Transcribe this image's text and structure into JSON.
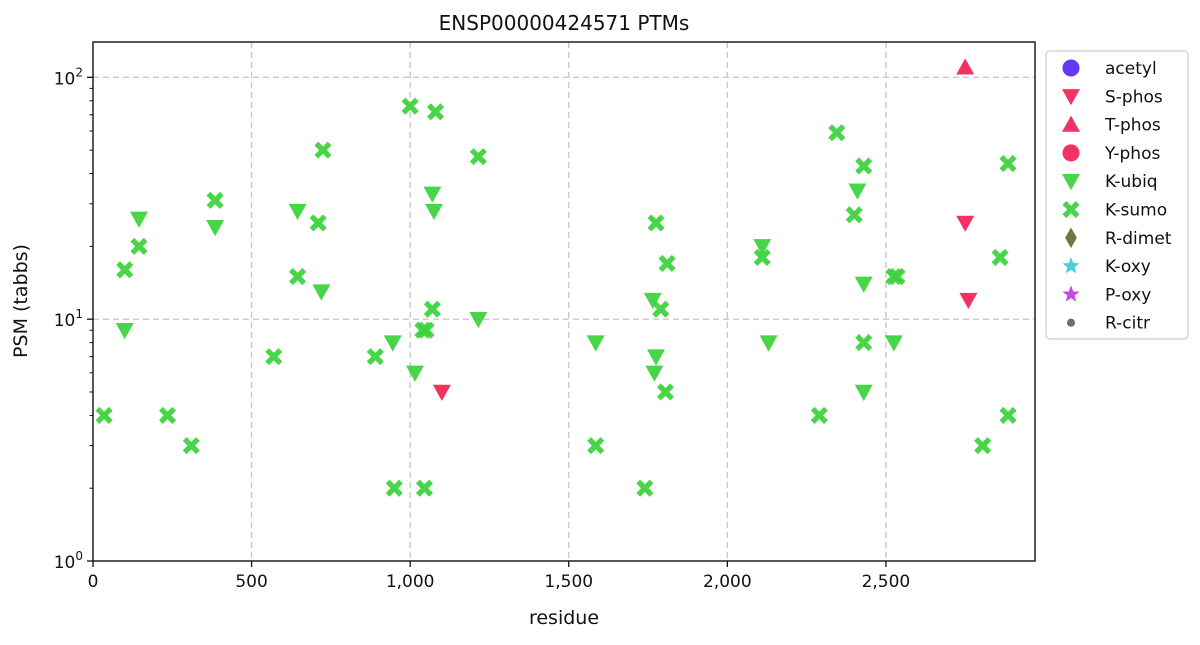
{
  "chart_data": {
    "type": "scatter",
    "title": "ENSP00000424571 PTMs",
    "xlabel": "residue",
    "ylabel": "PSM (tabbs)",
    "xlim": [
      0,
      2970
    ],
    "ylim": [
      1,
      140
    ],
    "yscale": "log",
    "grid": true,
    "legend_placement": "outside-right",
    "x_ticks": [
      {
        "value": 0,
        "label": "0"
      },
      {
        "value": 500,
        "label": "500"
      },
      {
        "value": 1000,
        "label": "1,000"
      },
      {
        "value": 1500,
        "label": "1,500"
      },
      {
        "value": 2000,
        "label": "2,000"
      },
      {
        "value": 2500,
        "label": "2,500"
      }
    ],
    "y_ticks": [
      {
        "value": 1,
        "base": "10",
        "exp": "0"
      },
      {
        "value": 10,
        "base": "10",
        "exp": "1"
      },
      {
        "value": 100,
        "base": "10",
        "exp": "2"
      }
    ],
    "series": [
      {
        "name": "acetyl",
        "marker": "circle",
        "color": "#5c2ef2",
        "points": []
      },
      {
        "name": "S-phos",
        "marker": "triangle-down",
        "color": "#f0285a",
        "points": [
          [
            1100,
            5
          ],
          [
            2750,
            25
          ],
          [
            2760,
            12
          ]
        ]
      },
      {
        "name": "T-phos",
        "marker": "triangle-up",
        "color": "#f0285a",
        "points": [
          [
            2750,
            110
          ]
        ]
      },
      {
        "name": "Y-phos",
        "marker": "circle",
        "color": "#f0285a",
        "points": []
      },
      {
        "name": "K-ubiq",
        "marker": "triangle-down",
        "color": "#3ed33e",
        "points": [
          [
            100,
            9
          ],
          [
            145,
            26
          ],
          [
            385,
            24
          ],
          [
            645,
            28
          ],
          [
            720,
            13
          ],
          [
            945,
            8
          ],
          [
            1015,
            6
          ],
          [
            1070,
            33
          ],
          [
            1075,
            28
          ],
          [
            1215,
            10
          ],
          [
            1585,
            8
          ],
          [
            1765,
            12
          ],
          [
            1770,
            6
          ],
          [
            1775,
            7
          ],
          [
            2110,
            20
          ],
          [
            2130,
            8
          ],
          [
            2410,
            34
          ],
          [
            2430,
            14
          ],
          [
            2430,
            5
          ],
          [
            2525,
            8
          ]
        ]
      },
      {
        "name": "K-sumo",
        "marker": "x",
        "color": "#3ed33e",
        "points": [
          [
            35,
            4
          ],
          [
            100,
            16
          ],
          [
            145,
            20
          ],
          [
            235,
            4
          ],
          [
            310,
            3
          ],
          [
            385,
            31
          ],
          [
            570,
            7
          ],
          [
            645,
            15
          ],
          [
            710,
            25
          ],
          [
            725,
            50
          ],
          [
            890,
            7
          ],
          [
            950,
            2
          ],
          [
            1000,
            76
          ],
          [
            1040,
            9
          ],
          [
            1045,
            2
          ],
          [
            1050,
            9
          ],
          [
            1070,
            11
          ],
          [
            1080,
            72
          ],
          [
            1215,
            47
          ],
          [
            1585,
            3
          ],
          [
            1740,
            2
          ],
          [
            1775,
            25
          ],
          [
            1790,
            11
          ],
          [
            1805,
            5
          ],
          [
            1810,
            17
          ],
          [
            2110,
            18
          ],
          [
            2290,
            4
          ],
          [
            2345,
            59
          ],
          [
            2400,
            27
          ],
          [
            2430,
            43
          ],
          [
            2430,
            8
          ],
          [
            2525,
            15
          ],
          [
            2535,
            15
          ],
          [
            2805,
            3
          ],
          [
            2860,
            18
          ],
          [
            2885,
            44
          ],
          [
            2885,
            4
          ]
        ]
      },
      {
        "name": "R-dimet",
        "marker": "diamond",
        "color": "#6b6b3a",
        "points": []
      },
      {
        "name": "K-oxy",
        "marker": "star",
        "color": "#40ccd4",
        "points": []
      },
      {
        "name": "P-oxy",
        "marker": "star",
        "color": "#c040d8",
        "points": []
      },
      {
        "name": "R-citr",
        "marker": "dot",
        "color": "#666666",
        "points": []
      }
    ]
  }
}
